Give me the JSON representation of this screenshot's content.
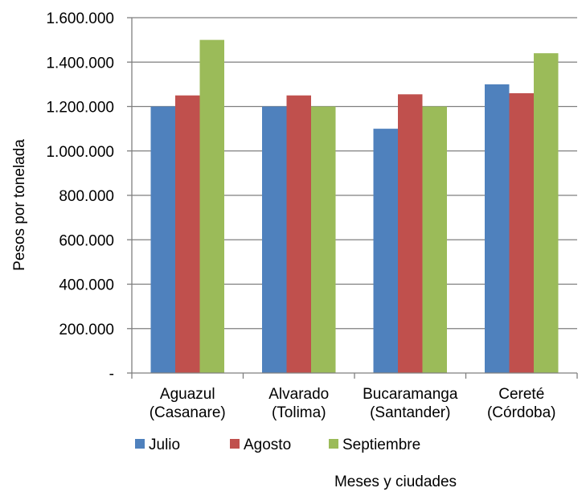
{
  "chart_data": {
    "type": "bar",
    "xlabel": "Meses y ciudades",
    "ylabel": "Pesos por tonelada",
    "ylim": [
      0,
      1600000
    ],
    "grid": true,
    "legend_position": "bottom",
    "categories": [
      [
        "Aguazul",
        "(Casanare)"
      ],
      [
        "Alvarado",
        "(Tolima)"
      ],
      [
        "Bucaramanga",
        "(Santander)"
      ],
      [
        "Cereté",
        "(Córdoba)"
      ]
    ],
    "y_ticks": [
      {
        "value": 0,
        "label": "-"
      },
      {
        "value": 200000,
        "label": "200.000"
      },
      {
        "value": 400000,
        "label": "400.000"
      },
      {
        "value": 600000,
        "label": "600.000"
      },
      {
        "value": 800000,
        "label": "800.000"
      },
      {
        "value": 1000000,
        "label": "1.000.000"
      },
      {
        "value": 1200000,
        "label": "1.200.000"
      },
      {
        "value": 1400000,
        "label": "1.400.000"
      },
      {
        "value": 1600000,
        "label": "1.600.000"
      }
    ],
    "series": [
      {
        "name": "Julio",
        "color": "#4f81bd",
        "values": [
          1200000,
          1200000,
          1100000,
          1300000
        ]
      },
      {
        "name": "Agosto",
        "color": "#c0504d",
        "values": [
          1250000,
          1250000,
          1255000,
          1260000
        ]
      },
      {
        "name": "Septiembre",
        "color": "#9bbb59",
        "values": [
          1500000,
          1200000,
          1200000,
          1440000
        ]
      }
    ]
  }
}
